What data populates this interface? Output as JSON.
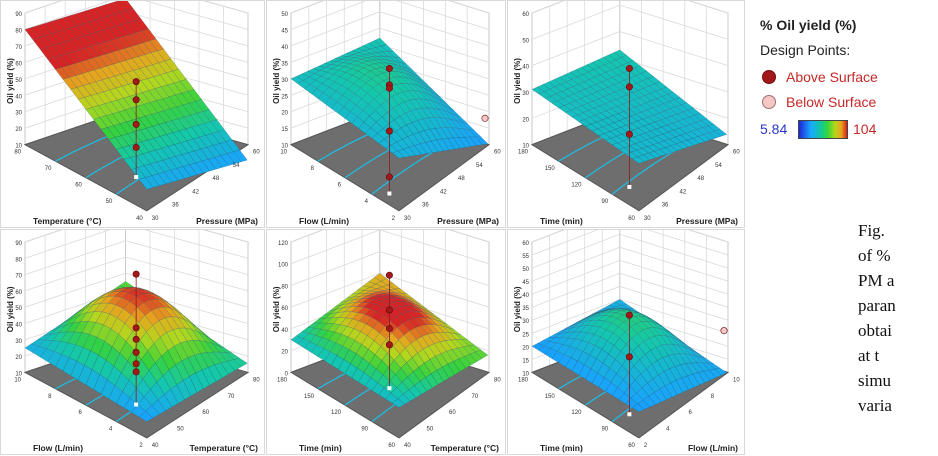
{
  "legend": {
    "title": "% Oil yield (%)",
    "design_points": "Design Points:",
    "above": "Above Surface",
    "below": "Below Surface",
    "min": "5.84",
    "max": "104",
    "colors": {
      "above": "#a31818",
      "below": "#f6c8c5",
      "low": "#1f25d8",
      "high": "#d81f1f"
    }
  },
  "caption_lines": [
    "Fig.",
    "of %",
    "PM a",
    "paran",
    "obtai",
    "at t",
    "simu",
    "varia"
  ],
  "chart_data": [
    {
      "type": "surface",
      "zlabel": "Oil yield (%)",
      "z_ticks": [
        "10",
        "20",
        "30",
        "40",
        "50",
        "60",
        "70",
        "80",
        "90"
      ],
      "x_axis": {
        "label": "Temperature (°C)",
        "ticks": [
          "80",
          "70",
          "60",
          "50",
          "40"
        ]
      },
      "y_axis": {
        "label": "Pressure (MPa)",
        "ticks": [
          "30",
          "36",
          "42",
          "48",
          "54",
          "60"
        ]
      },
      "surface": {
        "corner_left": 80,
        "corner_front": 23,
        "corner_right": 20,
        "corner_back": 78,
        "peak_ridge": 0
      },
      "design_points": [
        {
          "z": 68,
          "type": "above"
        },
        {
          "z": 57,
          "type": "above"
        },
        {
          "z": 42,
          "type": "above"
        },
        {
          "z": 28,
          "type": "above"
        }
      ]
    },
    {
      "type": "surface",
      "zlabel": "Oil yield (%)",
      "z_ticks": [
        "10",
        "15",
        "20",
        "25",
        "30",
        "35",
        "40",
        "45",
        "50"
      ],
      "x_axis": {
        "label": "Flow (L/min)",
        "ticks": [
          "10",
          "8",
          "6",
          "4",
          "2"
        ]
      },
      "y_axis": {
        "label": "Pressure (MPa)",
        "ticks": [
          "30",
          "36",
          "42",
          "48",
          "54",
          "60"
        ]
      },
      "surface": {
        "corner_left": 30,
        "corner_front": 26,
        "corner_right": 20,
        "corner_back": 32,
        "peak_ridge": 8
      },
      "design_points": [
        {
          "z": 48,
          "type": "above"
        },
        {
          "z": 43,
          "type": "above"
        },
        {
          "z": 42,
          "type": "above"
        },
        {
          "z": 29,
          "type": "above"
        },
        {
          "z": 15,
          "type": "above"
        },
        {
          "z": 18,
          "type": "below"
        }
      ]
    },
    {
      "type": "surface",
      "zlabel": "Oil yield (%)",
      "z_ticks": [
        "10",
        "20",
        "30",
        "40",
        "50",
        "60"
      ],
      "x_axis": {
        "label": "Time (min)",
        "ticks": [
          "180",
          "150",
          "120",
          "90",
          "60"
        ]
      },
      "y_axis": {
        "label": "Pressure (MPa)",
        "ticks": [
          "30",
          "36",
          "42",
          "48",
          "54",
          "60"
        ]
      },
      "surface": {
        "corner_left": 31,
        "corner_front": 28,
        "corner_right": 26,
        "corner_back": 33,
        "peak_ridge": 0
      },
      "design_points": [
        {
          "z": 55,
          "type": "above"
        },
        {
          "z": 48,
          "type": "above"
        },
        {
          "z": 30,
          "type": "above"
        }
      ]
    },
    {
      "type": "surface",
      "zlabel": "Oil yield (%)",
      "z_ticks": [
        "10",
        "20",
        "30",
        "40",
        "50",
        "60",
        "70",
        "80",
        "90"
      ],
      "x_axis": {
        "label": "Flow (L/min)",
        "ticks": [
          "10",
          "8",
          "6",
          "4",
          "2"
        ]
      },
      "y_axis": {
        "label": "Temperature (°C)",
        "ticks": [
          "40",
          "50",
          "60",
          "70",
          "80"
        ]
      },
      "surface": {
        "corner_left": 25,
        "corner_front": 20,
        "corner_right": 35,
        "corner_back": 45,
        "peak_ridge": 35
      },
      "design_points": [
        {
          "z": 90,
          "type": "above"
        },
        {
          "z": 57,
          "type": "above"
        },
        {
          "z": 50,
          "type": "above"
        },
        {
          "z": 42,
          "type": "above"
        },
        {
          "z": 35,
          "type": "above"
        },
        {
          "z": 30,
          "type": "above"
        }
      ]
    },
    {
      "type": "surface",
      "zlabel": "Oil yield (%)",
      "z_ticks": [
        "0",
        "20",
        "40",
        "60",
        "80",
        "100",
        "120"
      ],
      "x_axis": {
        "label": "Time (min)",
        "ticks": [
          "180",
          "150",
          "120",
          "90",
          "60"
        ]
      },
      "y_axis": {
        "label": "Temperature (°C)",
        "ticks": [
          "40",
          "50",
          "60",
          "70",
          "80"
        ]
      },
      "surface": {
        "corner_left": 30,
        "corner_front": 28,
        "corner_right": 45,
        "corner_back": 60,
        "peak_ridge": 30
      },
      "design_points": [
        {
          "z": 104,
          "type": "above"
        },
        {
          "z": 72,
          "type": "above"
        },
        {
          "z": 55,
          "type": "above"
        },
        {
          "z": 40,
          "type": "above"
        }
      ]
    },
    {
      "type": "surface",
      "zlabel": "Oil yield (%)",
      "z_ticks": [
        "10",
        "15",
        "20",
        "25",
        "30",
        "35",
        "40",
        "45",
        "50",
        "55",
        "60"
      ],
      "x_axis": {
        "label": "Time (min)",
        "ticks": [
          "180",
          "150",
          "120",
          "90",
          "60"
        ]
      },
      "y_axis": {
        "label": "Flow (L/min)",
        "ticks": [
          "2",
          "4",
          "6",
          "8",
          "10"
        ]
      },
      "surface": {
        "corner_left": 20,
        "corner_front": 20,
        "corner_right": 22,
        "corner_back": 25,
        "peak_ridge": 15
      },
      "design_points": [
        {
          "z": 48,
          "type": "above"
        },
        {
          "z": 32,
          "type": "above"
        },
        {
          "z": 26,
          "type": "below"
        }
      ]
    }
  ]
}
